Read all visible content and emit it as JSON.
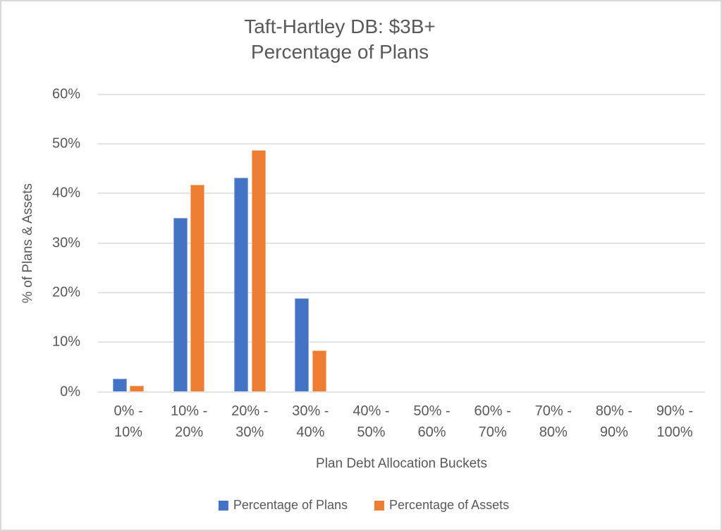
{
  "page": {
    "background": "#ffffff",
    "frame_border_color": "#d9d9d9"
  },
  "chart_data": {
    "type": "bar",
    "title": [
      "Taft-Hartley DB: $3B+",
      "Percentage of Plans"
    ],
    "xlabel": "Plan Debt Allocation Buckets",
    "ylabel": "% of Plans & Assets",
    "categories": [
      [
        "0% -",
        "10%"
      ],
      [
        "10% -",
        "20%"
      ],
      [
        "20% -",
        "30%"
      ],
      [
        "30% -",
        "40%"
      ],
      [
        "40% -",
        "50%"
      ],
      [
        "50% -",
        "60%"
      ],
      [
        "60% -",
        "70%"
      ],
      [
        "70% -",
        "80%"
      ],
      [
        "80% -",
        "90%"
      ],
      [
        "90% -",
        "100%"
      ]
    ],
    "series": [
      {
        "name": "Percentage of Plans",
        "color": "#4472C4",
        "border_color": "#8EA9DB",
        "values": [
          2.7,
          35.1,
          43.2,
          18.9,
          0,
          0,
          0,
          0,
          0,
          0
        ]
      },
      {
        "name": "Percentage of Assets",
        "color": "#ED7D31",
        "border_color": "#F4B183",
        "values": [
          1.2,
          41.8,
          48.7,
          8.3,
          0,
          0,
          0,
          0,
          0,
          0
        ]
      }
    ],
    "y_ticks": [
      "0%",
      "10%",
      "20%",
      "30%",
      "40%",
      "50%",
      "60%"
    ],
    "ylim": [
      0,
      60
    ],
    "grid": true,
    "legend_position": "bottom",
    "text_color": "#595959",
    "gridline_color": "#e3e3e3"
  }
}
